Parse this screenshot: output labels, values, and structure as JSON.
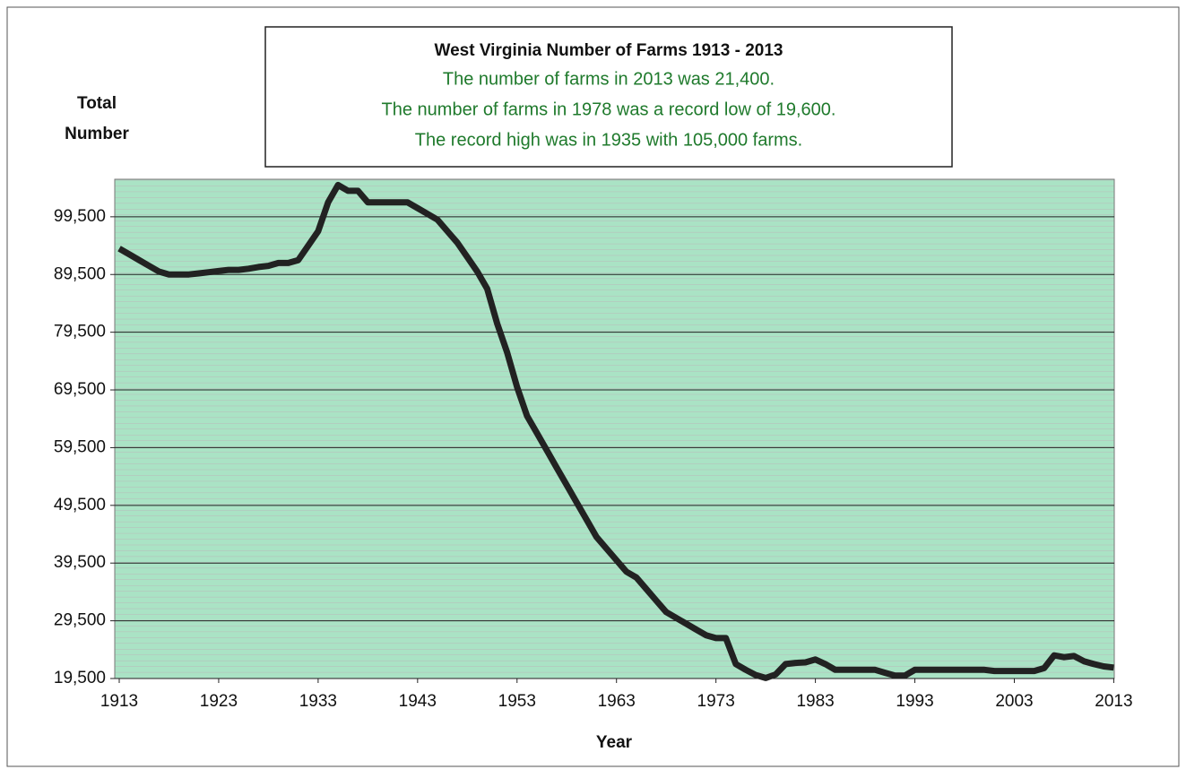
{
  "chart_data": {
    "type": "line",
    "title": "West Virginia Number of Farms 1913 - 2013",
    "subtitle": [
      "The number of farms in 2013 was 21,400.",
      "The number of farms in 1978 was a record low of 19,600.",
      "The record high was in 1935 with 105,000 farms."
    ],
    "ylabel": [
      "Total",
      "Number"
    ],
    "xlabel": "Year",
    "x": [
      1913,
      1914,
      1915,
      1916,
      1917,
      1918,
      1919,
      1920,
      1921,
      1922,
      1923,
      1924,
      1925,
      1926,
      1927,
      1928,
      1929,
      1930,
      1931,
      1932,
      1933,
      1934,
      1935,
      1936,
      1937,
      1938,
      1939,
      1940,
      1941,
      1942,
      1943,
      1944,
      1945,
      1946,
      1947,
      1948,
      1949,
      1950,
      1951,
      1952,
      1953,
      1954,
      1955,
      1956,
      1957,
      1958,
      1959,
      1960,
      1961,
      1962,
      1963,
      1964,
      1965,
      1966,
      1967,
      1968,
      1969,
      1970,
      1971,
      1972,
      1973,
      1974,
      1975,
      1976,
      1977,
      1978,
      1979,
      1980,
      1981,
      1982,
      1983,
      1984,
      1985,
      1986,
      1987,
      1988,
      1989,
      1990,
      1991,
      1992,
      1993,
      1994,
      1995,
      1996,
      1997,
      1998,
      1999,
      2000,
      2001,
      2002,
      2003,
      2004,
      2005,
      2006,
      2007,
      2008,
      2009,
      2010,
      2011,
      2012,
      2013
    ],
    "series": [
      {
        "name": "Number of Farms",
        "color": "#222222",
        "values": [
          94000,
          93000,
          92000,
          91000,
          90000,
          89500,
          89500,
          89500,
          89700,
          89900,
          90100,
          90300,
          90300,
          90500,
          90800,
          91000,
          91500,
          91500,
          92000,
          94500,
          97000,
          102000,
          105000,
          104000,
          104000,
          102000,
          102000,
          102000,
          102000,
          102000,
          101000,
          100000,
          99000,
          97000,
          95000,
          92500,
          90000,
          87000,
          81000,
          76000,
          70000,
          65000,
          62000,
          59000,
          56000,
          53000,
          50000,
          47000,
          44000,
          42000,
          40000,
          38000,
          37000,
          35000,
          33000,
          31000,
          30000,
          29000,
          28000,
          27000,
          26500,
          26500,
          22000,
          21000,
          20100,
          19600,
          20200,
          22000,
          22200,
          22300,
          22800,
          22000,
          21000,
          21000,
          21000,
          21000,
          21000,
          20500,
          20000,
          20000,
          21000,
          21000,
          21000,
          21000,
          21000,
          21000,
          21000,
          21000,
          20800,
          20800,
          20800,
          20800,
          20800,
          21300,
          23500,
          23200,
          23400,
          22500,
          22000,
          21600,
          21400
        ]
      }
    ],
    "xlim": [
      1913,
      2013
    ],
    "xticks": [
      1913,
      1923,
      1933,
      1943,
      1953,
      1963,
      1973,
      1983,
      1993,
      2003,
      2013
    ],
    "ylim": [
      19500,
      106000
    ],
    "yticks": [
      {
        "value": 19500,
        "label": "19,500"
      },
      {
        "value": 29500,
        "label": "29,500"
      },
      {
        "value": 39500,
        "label": "39,500"
      },
      {
        "value": 49500,
        "label": "49,500"
      },
      {
        "value": 59500,
        "label": "59,500"
      },
      {
        "value": 69500,
        "label": "69,500"
      },
      {
        "value": 79500,
        "label": "79,500"
      },
      {
        "value": 89500,
        "label": "89,500"
      },
      {
        "value": 99500,
        "label": "99,500"
      }
    ],
    "grid": true,
    "plot_color": "#aae3c5"
  }
}
